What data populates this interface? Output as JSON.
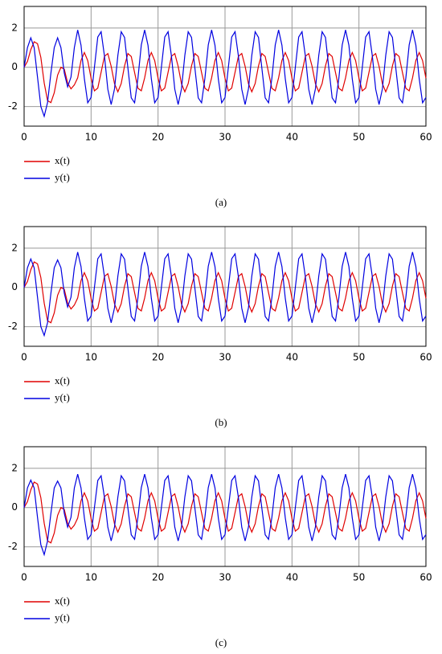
{
  "chart_data": [
    {
      "type": "line",
      "caption": "(a)",
      "x": [
        0,
        0.5,
        1,
        1.5,
        2,
        2.5,
        3,
        3.5,
        4,
        4.5,
        5,
        5.5,
        6,
        6.5,
        7,
        7.5,
        8,
        8.5,
        9,
        9.5,
        10,
        10.5,
        11,
        11.5,
        12,
        12.5,
        13,
        13.5,
        14,
        14.5,
        15,
        15.5,
        16,
        16.5,
        17,
        17.5,
        18,
        18.5,
        19,
        19.5,
        20,
        20.5,
        21,
        21.5,
        22,
        22.5,
        23,
        23.5,
        24,
        24.5,
        25,
        25.5,
        26,
        26.5,
        27,
        27.5,
        28,
        28.5,
        29,
        29.5,
        30,
        30.5,
        31,
        31.5,
        32,
        32.5,
        33,
        33.5,
        34,
        34.5,
        35,
        35.5,
        36,
        36.5,
        37,
        37.5,
        38,
        38.5,
        39,
        39.5,
        40,
        40.5,
        41,
        41.5,
        42,
        42.5,
        43,
        43.5,
        44,
        44.5,
        45,
        45.5,
        46,
        46.5,
        47,
        47.5,
        48,
        48.5,
        49,
        49.5,
        50,
        50.5,
        51,
        51.5,
        52,
        52.5,
        53,
        53.5,
        54,
        54.5,
        55,
        55.5,
        56,
        56.5,
        57,
        57.5,
        58,
        58.5,
        59,
        59.5,
        60
      ],
      "series": [
        {
          "name": "x(t)",
          "color": "#e00000",
          "values": [
            0,
            0.3,
            0.9,
            1.3,
            1.2,
            0.5,
            -0.8,
            -1.7,
            -1.8,
            -1.3,
            -0.4,
            0.0,
            -0.1,
            -0.8,
            -1.1,
            -0.9,
            -0.54,
            0.35,
            0.75,
            0.34,
            -0.56,
            -1.2,
            -1.06,
            -0.25,
            0.56,
            0.7,
            0.05,
            -0.84,
            -1.25,
            -0.83,
            0.07,
            0.7,
            0.55,
            -0.27,
            -1.07,
            -1.2,
            -0.54,
            0.35,
            0.75,
            0.34,
            -0.56,
            -1.2,
            -1.06,
            -0.25,
            0.56,
            0.7,
            0.05,
            -0.84,
            -1.25,
            -0.83,
            0.07,
            0.7,
            0.55,
            -0.27,
            -1.07,
            -1.2,
            -0.54,
            0.35,
            0.75,
            0.34,
            -0.56,
            -1.2,
            -1.06,
            -0.25,
            0.56,
            0.7,
            0.05,
            -0.84,
            -1.25,
            -0.83,
            0.07,
            0.7,
            0.55,
            -0.27,
            -1.07,
            -1.2,
            -0.54,
            0.35,
            0.75,
            0.34,
            -0.56,
            -1.2,
            -1.06,
            -0.25,
            0.56,
            0.7,
            0.05,
            -0.84,
            -1.25,
            -0.83,
            0.07,
            0.7,
            0.55,
            -0.27,
            -1.07,
            -1.2,
            -0.54,
            0.35,
            0.75,
            0.34,
            -0.56,
            -1.2,
            -1.06,
            -0.25,
            0.56,
            0.7,
            0.05,
            -0.84,
            -1.25,
            -0.83,
            0.07,
            0.7,
            0.55,
            -0.27,
            -1.07,
            -1.2,
            -0.54,
            0.35,
            0.75,
            0.34,
            -0.56
          ]
        },
        {
          "name": "y(t)",
          "color": "#0000e0",
          "values": [
            0,
            1.0,
            1.5,
            1.0,
            -0.5,
            -2.0,
            -2.5,
            -1.8,
            -0.3,
            1.0,
            1.5,
            1.0,
            -0.3,
            -1.0,
            -0.5,
            1.0,
            1.9,
            1.12,
            -0.59,
            -1.81,
            -1.54,
            0,
            1.54,
            1.81,
            0.57,
            -1.12,
            -1.9,
            -1.1,
            0.61,
            1.81,
            1.52,
            -0.04,
            -1.56,
            -1.81,
            -0.55,
            1.14,
            1.9,
            1.12,
            -0.59,
            -1.81,
            -1.54,
            0,
            1.54,
            1.81,
            0.57,
            -1.12,
            -1.9,
            -1.1,
            0.61,
            1.81,
            1.52,
            -0.04,
            -1.56,
            -1.81,
            -0.55,
            1.14,
            1.9,
            1.12,
            -0.59,
            -1.81,
            -1.54,
            0,
            1.54,
            1.81,
            0.57,
            -1.12,
            -1.9,
            -1.1,
            0.61,
            1.81,
            1.52,
            -0.04,
            -1.56,
            -1.81,
            -0.55,
            1.14,
            1.9,
            1.12,
            -0.59,
            -1.81,
            -1.54,
            0,
            1.54,
            1.81,
            0.57,
            -1.12,
            -1.9,
            -1.1,
            0.61,
            1.81,
            1.52,
            -0.04,
            -1.56,
            -1.81,
            -0.55,
            1.14,
            1.9,
            1.12,
            -0.59,
            -1.81,
            -1.54,
            0,
            1.54,
            1.81,
            0.57,
            -1.12,
            -1.9,
            -1.1,
            0.61,
            1.81,
            1.52,
            -0.04,
            -1.56,
            -1.81,
            -0.55,
            1.14,
            1.9,
            1.12,
            -0.59,
            -1.81,
            -1.54
          ]
        }
      ],
      "xlim": [
        0,
        60
      ],
      "xticks": [
        0,
        10,
        20,
        30,
        40,
        50,
        60
      ],
      "ylim": [
        -3,
        3.1
      ],
      "yticks": [
        -2,
        0,
        2
      ],
      "grid": true
    },
    {
      "type": "line",
      "caption": "(b)",
      "x": [
        0,
        0.5,
        1,
        1.5,
        2,
        2.5,
        3,
        3.5,
        4,
        4.5,
        5,
        5.5,
        6,
        6.5,
        7,
        7.5,
        8,
        8.5,
        9,
        9.5,
        10,
        10.5,
        11,
        11.5,
        12,
        12.5,
        13,
        13.5,
        14,
        14.5,
        15,
        15.5,
        16,
        16.5,
        17,
        17.5,
        18,
        18.5,
        19,
        19.5,
        20,
        20.5,
        21,
        21.5,
        22,
        22.5,
        23,
        23.5,
        24,
        24.5,
        25,
        25.5,
        26,
        26.5,
        27,
        27.5,
        28,
        28.5,
        29,
        29.5,
        30,
        30.5,
        31,
        31.5,
        32,
        32.5,
        33,
        33.5,
        34,
        34.5,
        35,
        35.5,
        36,
        36.5,
        37,
        37.5,
        38,
        38.5,
        39,
        39.5,
        40,
        40.5,
        41,
        41.5,
        42,
        42.5,
        43,
        43.5,
        44,
        44.5,
        45,
        45.5,
        46,
        46.5,
        47,
        47.5,
        48,
        48.5,
        49,
        49.5,
        50,
        50.5,
        51,
        51.5,
        52,
        52.5,
        53,
        53.5,
        54,
        54.5,
        55,
        55.5,
        56,
        56.5,
        57,
        57.5,
        58,
        58.5,
        59,
        59.5,
        60
      ],
      "series": [
        {
          "name": "x(t)",
          "color": "#e00000",
          "values": [
            0,
            0.3,
            0.9,
            1.3,
            1.2,
            0.5,
            -0.8,
            -1.7,
            -1.8,
            -1.3,
            -0.4,
            0.0,
            -0.1,
            -0.8,
            -1.1,
            -0.9,
            -0.54,
            0.35,
            0.75,
            0.34,
            -0.56,
            -1.2,
            -1.06,
            -0.25,
            0.56,
            0.7,
            0.05,
            -0.84,
            -1.25,
            -0.83,
            0.07,
            0.7,
            0.55,
            -0.27,
            -1.07,
            -1.2,
            -0.54,
            0.35,
            0.75,
            0.34,
            -0.56,
            -1.2,
            -1.06,
            -0.25,
            0.56,
            0.7,
            0.05,
            -0.84,
            -1.25,
            -0.83,
            0.07,
            0.7,
            0.55,
            -0.27,
            -1.07,
            -1.2,
            -0.54,
            0.35,
            0.75,
            0.34,
            -0.56,
            -1.2,
            -1.06,
            -0.25,
            0.56,
            0.7,
            0.05,
            -0.84,
            -1.25,
            -0.83,
            0.07,
            0.7,
            0.55,
            -0.27,
            -1.07,
            -1.2,
            -0.54,
            0.35,
            0.75,
            0.34,
            -0.56,
            -1.2,
            -1.06,
            -0.25,
            0.56,
            0.7,
            0.05,
            -0.84,
            -1.25,
            -0.83,
            0.07,
            0.7,
            0.55,
            -0.27,
            -1.07,
            -1.2,
            -0.54,
            0.35,
            0.75,
            0.34,
            -0.56,
            -1.2,
            -1.06,
            -0.25,
            0.56,
            0.7,
            0.05,
            -0.84,
            -1.25,
            -0.83,
            0.07,
            0.7,
            0.55,
            -0.27,
            -1.07,
            -1.2,
            -0.54,
            0.35,
            0.75,
            0.34,
            -0.56
          ]
        },
        {
          "name": "y(t)",
          "color": "#0000e0",
          "values": [
            0,
            1.0,
            1.45,
            1.0,
            -0.5,
            -2.0,
            -2.45,
            -1.8,
            -0.3,
            1.0,
            1.4,
            1.0,
            -0.3,
            -1.0,
            -0.5,
            1.0,
            1.8,
            1.06,
            -0.56,
            -1.71,
            -1.46,
            0,
            1.46,
            1.71,
            0.54,
            -1.06,
            -1.8,
            -1.04,
            0.58,
            1.71,
            1.44,
            -0.04,
            -1.48,
            -1.71,
            -0.52,
            1.08,
            1.8,
            1.06,
            -0.56,
            -1.71,
            -1.46,
            0,
            1.46,
            1.71,
            0.54,
            -1.06,
            -1.8,
            -1.04,
            0.58,
            1.71,
            1.44,
            -0.04,
            -1.48,
            -1.71,
            -0.52,
            1.08,
            1.8,
            1.06,
            -0.56,
            -1.71,
            -1.46,
            0,
            1.46,
            1.71,
            0.54,
            -1.06,
            -1.8,
            -1.04,
            0.58,
            1.71,
            1.44,
            -0.04,
            -1.48,
            -1.71,
            -0.52,
            1.08,
            1.8,
            1.06,
            -0.56,
            -1.71,
            -1.46,
            0,
            1.46,
            1.71,
            0.54,
            -1.06,
            -1.8,
            -1.04,
            0.58,
            1.71,
            1.44,
            -0.04,
            -1.48,
            -1.71,
            -0.52,
            1.08,
            1.8,
            1.06,
            -0.56,
            -1.71,
            -1.46,
            0,
            1.46,
            1.71,
            0.54,
            -1.06,
            -1.8,
            -1.04,
            0.58,
            1.71,
            1.44,
            -0.04,
            -1.48,
            -1.71,
            -0.52,
            1.08,
            1.8,
            1.06,
            -0.56,
            -1.71,
            -1.46
          ]
        }
      ],
      "xlim": [
        0,
        60
      ],
      "xticks": [
        0,
        10,
        20,
        30,
        40,
        50,
        60
      ],
      "ylim": [
        -3,
        3.1
      ],
      "yticks": [
        -2,
        0,
        2
      ],
      "grid": true
    },
    {
      "type": "line",
      "caption": "(c)",
      "x": [
        0,
        0.5,
        1,
        1.5,
        2,
        2.5,
        3,
        3.5,
        4,
        4.5,
        5,
        5.5,
        6,
        6.5,
        7,
        7.5,
        8,
        8.5,
        9,
        9.5,
        10,
        10.5,
        11,
        11.5,
        12,
        12.5,
        13,
        13.5,
        14,
        14.5,
        15,
        15.5,
        16,
        16.5,
        17,
        17.5,
        18,
        18.5,
        19,
        19.5,
        20,
        20.5,
        21,
        21.5,
        22,
        22.5,
        23,
        23.5,
        24,
        24.5,
        25,
        25.5,
        26,
        26.5,
        27,
        27.5,
        28,
        28.5,
        29,
        29.5,
        30,
        30.5,
        31,
        31.5,
        32,
        32.5,
        33,
        33.5,
        34,
        34.5,
        35,
        35.5,
        36,
        36.5,
        37,
        37.5,
        38,
        38.5,
        39,
        39.5,
        40,
        40.5,
        41,
        41.5,
        42,
        42.5,
        43,
        43.5,
        44,
        44.5,
        45,
        45.5,
        46,
        46.5,
        47,
        47.5,
        48,
        48.5,
        49,
        49.5,
        50,
        50.5,
        51,
        51.5,
        52,
        52.5,
        53,
        53.5,
        54,
        54.5,
        55,
        55.5,
        56,
        56.5,
        57,
        57.5,
        58,
        58.5,
        59,
        59.5,
        60
      ],
      "series": [
        {
          "name": "x(t)",
          "color": "#e00000",
          "values": [
            0,
            0.3,
            0.9,
            1.3,
            1.2,
            0.5,
            -0.8,
            -1.7,
            -1.8,
            -1.3,
            -0.4,
            0.0,
            -0.1,
            -0.8,
            -1.1,
            -0.9,
            -0.54,
            0.35,
            0.75,
            0.34,
            -0.56,
            -1.2,
            -1.06,
            -0.25,
            0.56,
            0.7,
            0.05,
            -0.84,
            -1.25,
            -0.83,
            0.07,
            0.7,
            0.55,
            -0.27,
            -1.07,
            -1.2,
            -0.54,
            0.35,
            0.75,
            0.34,
            -0.56,
            -1.2,
            -1.06,
            -0.25,
            0.56,
            0.7,
            0.05,
            -0.84,
            -1.25,
            -0.83,
            0.07,
            0.7,
            0.55,
            -0.27,
            -1.07,
            -1.2,
            -0.54,
            0.35,
            0.75,
            0.34,
            -0.56,
            -1.2,
            -1.06,
            -0.25,
            0.56,
            0.7,
            0.05,
            -0.84,
            -1.25,
            -0.83,
            0.07,
            0.7,
            0.55,
            -0.27,
            -1.07,
            -1.2,
            -0.54,
            0.35,
            0.75,
            0.34,
            -0.56,
            -1.2,
            -1.06,
            -0.25,
            0.56,
            0.7,
            0.05,
            -0.84,
            -1.25,
            -0.83,
            0.07,
            0.7,
            0.55,
            -0.27,
            -1.07,
            -1.2,
            -0.54,
            0.35,
            0.75,
            0.34,
            -0.56,
            -1.2,
            -1.06,
            -0.25,
            0.56,
            0.7,
            0.05,
            -0.84,
            -1.25,
            -0.83,
            0.07,
            0.7,
            0.55,
            -0.27,
            -1.07,
            -1.2,
            -0.54,
            0.35,
            0.75,
            0.34,
            -0.56
          ]
        },
        {
          "name": "y(t)",
          "color": "#0000e0",
          "values": [
            0,
            1.0,
            1.4,
            1.0,
            -0.5,
            -1.9,
            -2.4,
            -1.7,
            -0.3,
            1.0,
            1.35,
            1.0,
            -0.3,
            -1.0,
            -0.5,
            1.0,
            1.7,
            1.0,
            -0.53,
            -1.62,
            -1.38,
            0,
            1.38,
            1.62,
            0.51,
            -1.0,
            -1.7,
            -0.99,
            0.54,
            1.62,
            1.36,
            -0.03,
            -1.39,
            -1.62,
            -0.49,
            1.02,
            1.7,
            1.0,
            -0.53,
            -1.62,
            -1.38,
            0,
            1.38,
            1.62,
            0.51,
            -1.0,
            -1.7,
            -0.99,
            0.54,
            1.62,
            1.36,
            -0.03,
            -1.39,
            -1.62,
            -0.49,
            1.02,
            1.7,
            1.0,
            -0.53,
            -1.62,
            -1.38,
            0,
            1.38,
            1.62,
            0.51,
            -1.0,
            -1.7,
            -0.99,
            0.54,
            1.62,
            1.36,
            -0.03,
            -1.39,
            -1.62,
            -0.49,
            1.02,
            1.7,
            1.0,
            -0.53,
            -1.62,
            -1.38,
            0,
            1.38,
            1.62,
            0.51,
            -1.0,
            -1.7,
            -0.99,
            0.54,
            1.62,
            1.36,
            -0.03,
            -1.39,
            -1.62,
            -0.49,
            1.02,
            1.7,
            1.0,
            -0.53,
            -1.62,
            -1.38,
            0,
            1.38,
            1.62,
            0.51,
            -1.0,
            -1.7,
            -0.99,
            0.54,
            1.62,
            1.36,
            -0.03,
            -1.39,
            -1.62,
            -0.49,
            1.02,
            1.7,
            1.0,
            -0.53,
            -1.62,
            -1.38
          ]
        }
      ],
      "xlim": [
        0,
        60
      ],
      "xticks": [
        0,
        10,
        20,
        30,
        40,
        50,
        60
      ],
      "ylim": [
        -3,
        3.1
      ],
      "yticks": [
        -2,
        0,
        2
      ],
      "grid": true
    }
  ]
}
